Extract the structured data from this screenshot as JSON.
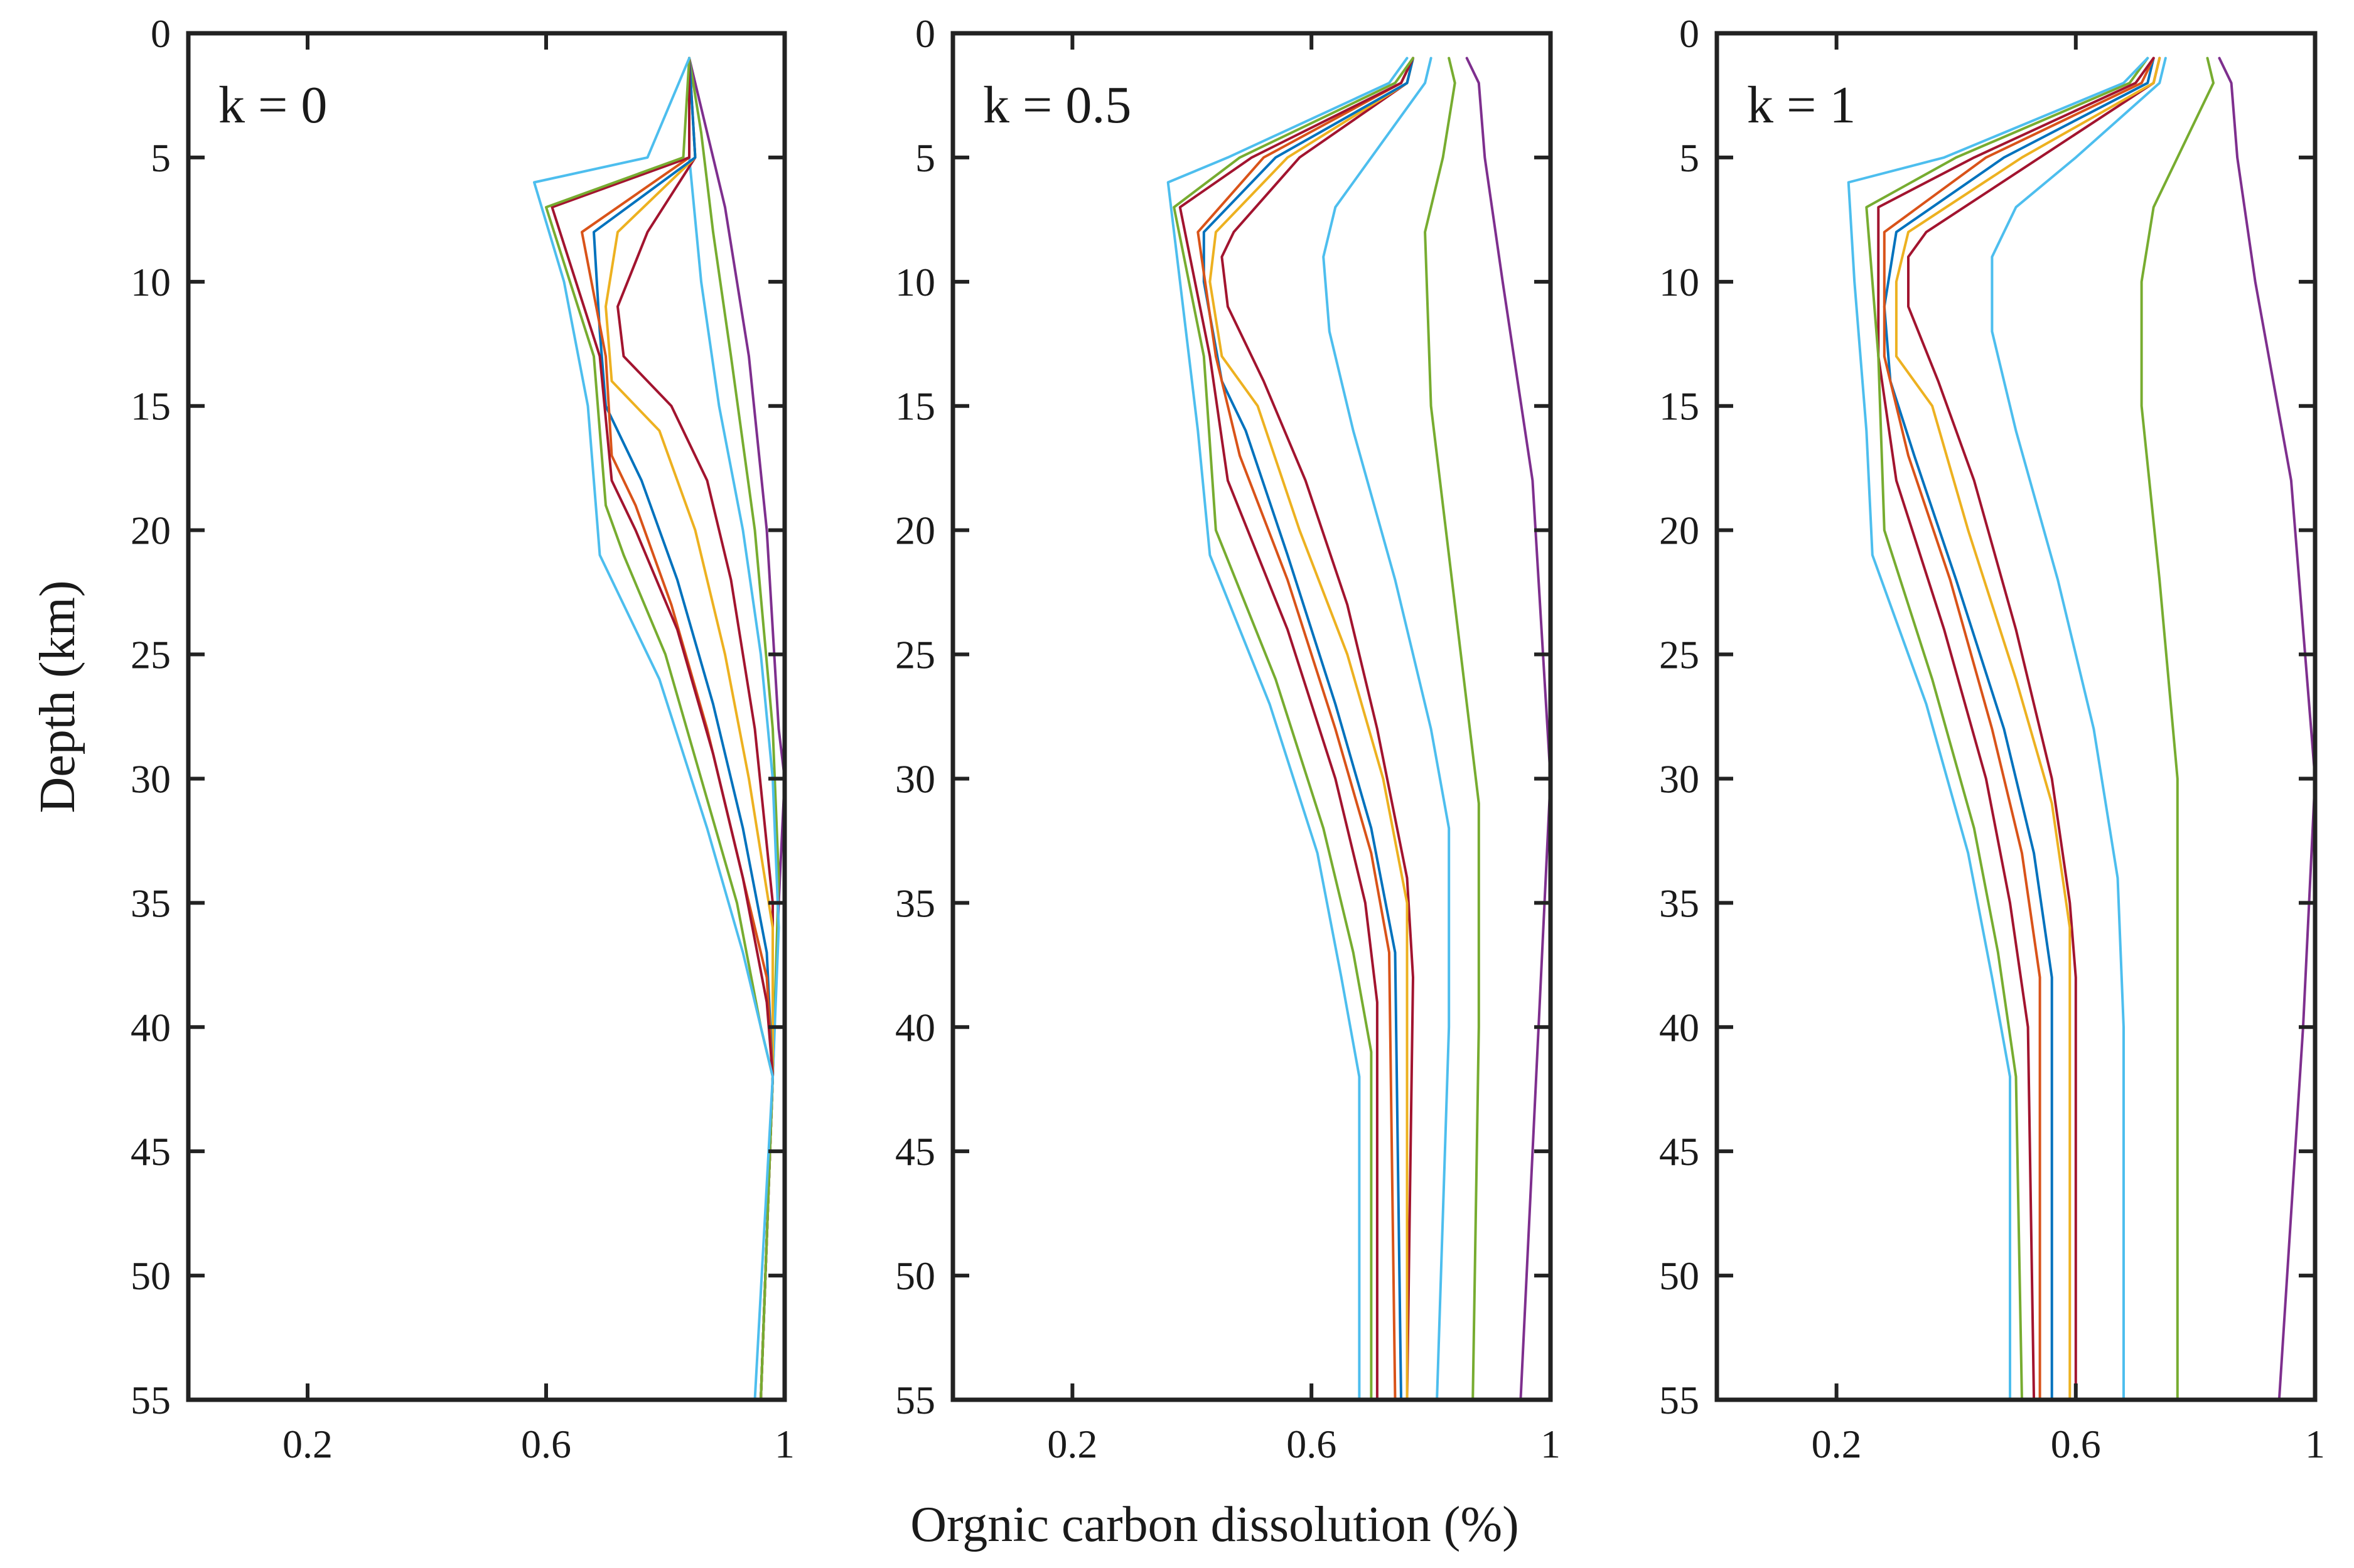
{
  "figure": {
    "xlabel": "Orgnic carbon dissolution (%)",
    "ylabel": "Depth (km)"
  },
  "chart_data": [
    {
      "type": "line",
      "panel_label": "k = 0",
      "xlim": [
        0,
        1
      ],
      "ylim": [
        0,
        55
      ],
      "y_reversed": true,
      "xticks": [
        0.2,
        0.6,
        1
      ],
      "xtick_labels": [
        "0.2",
        "0.6",
        "1"
      ],
      "yticks": [
        0,
        5,
        10,
        15,
        20,
        25,
        30,
        35,
        40,
        45,
        50,
        55
      ],
      "ytick_labels": [
        "0",
        "5",
        "10",
        "15",
        "20",
        "25",
        "30",
        "35",
        "40",
        "45",
        "50",
        "55"
      ],
      "grid": false,
      "series": [
        {
          "color": "#7E2F8E",
          "depth": [
            1,
            3,
            7,
            13,
            20,
            28,
            30,
            35,
            42,
            55
          ],
          "values": [
            0.84,
            0.86,
            0.9,
            0.94,
            0.97,
            0.99,
            1.0,
            0.99,
            0.98,
            0.96
          ]
        },
        {
          "color": "#77AC30",
          "depth": [
            1,
            4,
            8,
            13,
            20,
            28,
            34,
            42,
            55
          ],
          "values": [
            0.84,
            0.86,
            0.88,
            0.91,
            0.95,
            0.98,
            0.99,
            0.98,
            0.96
          ]
        },
        {
          "color": "#4DBEEE",
          "depth": [
            1,
            5,
            10,
            15,
            20,
            25,
            30,
            36,
            42,
            55
          ],
          "values": [
            0.84,
            0.84,
            0.86,
            0.89,
            0.93,
            0.96,
            0.98,
            0.99,
            0.98,
            0.96
          ]
        },
        {
          "color": "#A2142F",
          "depth": [
            1,
            5,
            8,
            11,
            13,
            15,
            18,
            22,
            28,
            35,
            42,
            55
          ],
          "values": [
            0.84,
            0.85,
            0.77,
            0.72,
            0.73,
            0.81,
            0.87,
            0.91,
            0.95,
            0.98,
            0.98,
            0.96
          ]
        },
        {
          "color": "#EDB120",
          "depth": [
            1,
            5,
            8,
            11,
            14,
            16,
            20,
            25,
            30,
            36,
            42,
            55
          ],
          "values": [
            0.84,
            0.85,
            0.72,
            0.7,
            0.71,
            0.79,
            0.85,
            0.9,
            0.94,
            0.98,
            0.98,
            0.96
          ]
        },
        {
          "color": "#0072BD",
          "depth": [
            1,
            5,
            8,
            12,
            15,
            18,
            22,
            27,
            32,
            37,
            42,
            55
          ],
          "values": [
            0.84,
            0.85,
            0.68,
            0.69,
            0.7,
            0.76,
            0.82,
            0.88,
            0.93,
            0.97,
            0.98,
            0.96
          ]
        },
        {
          "color": "#D95319",
          "depth": [
            1,
            5,
            8,
            13,
            17,
            19,
            23,
            28,
            33,
            38,
            42,
            55
          ],
          "values": [
            0.84,
            0.84,
            0.66,
            0.7,
            0.71,
            0.75,
            0.81,
            0.87,
            0.92,
            0.97,
            0.98,
            0.96
          ]
        },
        {
          "color": "#A2142F",
          "depth": [
            1,
            5,
            7,
            13,
            18,
            20,
            24,
            29,
            34,
            39,
            42,
            55
          ],
          "values": [
            0.84,
            0.84,
            0.61,
            0.69,
            0.71,
            0.75,
            0.82,
            0.88,
            0.93,
            0.97,
            0.98,
            0.96
          ]
        },
        {
          "color": "#77AC30",
          "depth": [
            1,
            5,
            7,
            13,
            19,
            21,
            25,
            30,
            35,
            40,
            42,
            55
          ],
          "values": [
            0.84,
            0.83,
            0.6,
            0.68,
            0.7,
            0.73,
            0.8,
            0.86,
            0.92,
            0.96,
            0.98,
            0.96
          ]
        },
        {
          "color": "#4DBEEE",
          "depth": [
            1,
            5,
            6,
            10,
            15,
            21,
            26,
            32,
            37,
            42,
            55
          ],
          "values": [
            0.84,
            0.77,
            0.58,
            0.63,
            0.67,
            0.69,
            0.79,
            0.87,
            0.93,
            0.98,
            0.95
          ]
        }
      ]
    },
    {
      "type": "line",
      "panel_label": "k = 0.5",
      "xlim": [
        0,
        1
      ],
      "ylim": [
        0,
        55
      ],
      "y_reversed": true,
      "xticks": [
        0.2,
        0.6,
        1
      ],
      "xtick_labels": [
        "0.2",
        "0.6",
        "1"
      ],
      "yticks": [
        0,
        5,
        10,
        15,
        20,
        25,
        30,
        35,
        40,
        45,
        50,
        55
      ],
      "ytick_labels": [
        "0",
        "5",
        "10",
        "15",
        "20",
        "25",
        "30",
        "35",
        "40",
        "45",
        "50",
        "55"
      ],
      "grid": false,
      "series": [
        {
          "color": "#7E2F8E",
          "depth": [
            1,
            2,
            5,
            10,
            18,
            30,
            40,
            55
          ],
          "values": [
            0.86,
            0.88,
            0.89,
            0.92,
            0.97,
            1.0,
            0.98,
            0.95
          ]
        },
        {
          "color": "#77AC30",
          "depth": [
            1,
            2,
            5,
            8,
            15,
            25,
            31,
            40,
            55
          ],
          "values": [
            0.83,
            0.84,
            0.82,
            0.79,
            0.8,
            0.85,
            0.88,
            0.88,
            0.87
          ]
        },
        {
          "color": "#4DBEEE",
          "depth": [
            1,
            2,
            5,
            7,
            9,
            12,
            16,
            22,
            28,
            32,
            40,
            55
          ],
          "values": [
            0.8,
            0.79,
            0.7,
            0.64,
            0.62,
            0.63,
            0.67,
            0.74,
            0.8,
            0.83,
            0.83,
            0.81
          ]
        },
        {
          "color": "#A2142F",
          "depth": [
            1,
            2,
            5,
            8,
            9,
            11,
            14,
            18,
            23,
            28,
            34,
            38,
            55
          ],
          "values": [
            0.77,
            0.76,
            0.58,
            0.47,
            0.45,
            0.46,
            0.52,
            0.59,
            0.66,
            0.71,
            0.76,
            0.77,
            0.76
          ]
        },
        {
          "color": "#EDB120",
          "depth": [
            1,
            2,
            5,
            8,
            10,
            13,
            15,
            20,
            25,
            30,
            35,
            55
          ],
          "values": [
            0.77,
            0.76,
            0.56,
            0.44,
            0.43,
            0.45,
            0.51,
            0.58,
            0.66,
            0.72,
            0.76,
            0.76
          ]
        },
        {
          "color": "#0072BD",
          "depth": [
            1,
            2,
            5,
            8,
            10,
            14,
            16,
            21,
            27,
            32,
            37,
            55
          ],
          "values": [
            0.77,
            0.76,
            0.54,
            0.42,
            0.42,
            0.45,
            0.49,
            0.56,
            0.64,
            0.7,
            0.74,
            0.75
          ]
        },
        {
          "color": "#D95319",
          "depth": [
            1,
            2,
            5,
            8,
            13,
            17,
            22,
            28,
            33,
            37,
            55
          ],
          "values": [
            0.77,
            0.75,
            0.52,
            0.41,
            0.44,
            0.48,
            0.56,
            0.64,
            0.7,
            0.73,
            0.74
          ]
        },
        {
          "color": "#A2142F",
          "depth": [
            1,
            2,
            5,
            7,
            13,
            18,
            24,
            30,
            35,
            39,
            55
          ],
          "values": [
            0.77,
            0.75,
            0.5,
            0.38,
            0.43,
            0.46,
            0.56,
            0.64,
            0.69,
            0.71,
            0.71
          ]
        },
        {
          "color": "#77AC30",
          "depth": [
            1,
            2,
            5,
            7,
            13,
            20,
            26,
            32,
            37,
            41,
            55
          ],
          "values": [
            0.77,
            0.74,
            0.48,
            0.37,
            0.42,
            0.44,
            0.54,
            0.62,
            0.67,
            0.7,
            0.7
          ]
        },
        {
          "color": "#4DBEEE",
          "depth": [
            1,
            2,
            5,
            6,
            10,
            16,
            21,
            27,
            33,
            38,
            42,
            55
          ],
          "values": [
            0.76,
            0.73,
            0.46,
            0.36,
            0.38,
            0.41,
            0.43,
            0.53,
            0.61,
            0.65,
            0.68,
            0.68
          ]
        }
      ]
    },
    {
      "type": "line",
      "panel_label": "k = 1",
      "xlim": [
        0,
        1
      ],
      "ylim": [
        0,
        55
      ],
      "y_reversed": true,
      "xticks": [
        0.2,
        0.6,
        1
      ],
      "xtick_labels": [
        "0.2",
        "0.6",
        "1"
      ],
      "yticks": [
        0,
        5,
        10,
        15,
        20,
        25,
        30,
        35,
        40,
        45,
        50,
        55
      ],
      "ytick_labels": [
        "0",
        "5",
        "10",
        "15",
        "20",
        "25",
        "30",
        "35",
        "40",
        "45",
        "50",
        "55"
      ],
      "grid": false,
      "series": [
        {
          "color": "#7E2F8E",
          "depth": [
            1,
            2,
            5,
            10,
            18,
            30,
            40,
            55
          ],
          "values": [
            0.84,
            0.86,
            0.87,
            0.9,
            0.96,
            1.0,
            0.98,
            0.94
          ]
        },
        {
          "color": "#77AC30",
          "depth": [
            1,
            2,
            4,
            7,
            10,
            15,
            22,
            30,
            35,
            55
          ],
          "values": [
            0.82,
            0.83,
            0.79,
            0.73,
            0.71,
            0.71,
            0.74,
            0.77,
            0.77,
            0.77
          ]
        },
        {
          "color": "#4DBEEE",
          "depth": [
            1,
            2,
            5,
            7,
            9,
            12,
            16,
            22,
            28,
            34,
            40,
            55
          ],
          "values": [
            0.75,
            0.74,
            0.6,
            0.5,
            0.46,
            0.46,
            0.5,
            0.57,
            0.63,
            0.67,
            0.68,
            0.68
          ]
        },
        {
          "color": "#A2142F",
          "depth": [
            1,
            2,
            5,
            8,
            9,
            11,
            14,
            18,
            24,
            30,
            35,
            38,
            55
          ],
          "values": [
            0.74,
            0.73,
            0.54,
            0.35,
            0.32,
            0.32,
            0.37,
            0.43,
            0.5,
            0.56,
            0.59,
            0.6,
            0.6
          ]
        },
        {
          "color": "#EDB120",
          "depth": [
            1,
            2,
            5,
            8,
            10,
            13,
            15,
            20,
            26,
            31,
            36,
            55
          ],
          "values": [
            0.74,
            0.73,
            0.51,
            0.32,
            0.3,
            0.3,
            0.36,
            0.42,
            0.5,
            0.56,
            0.59,
            0.59
          ]
        },
        {
          "color": "#0072BD",
          "depth": [
            1,
            2,
            5,
            8,
            11,
            14,
            17,
            22,
            28,
            33,
            38,
            55
          ],
          "values": [
            0.73,
            0.72,
            0.48,
            0.3,
            0.28,
            0.29,
            0.33,
            0.4,
            0.48,
            0.53,
            0.56,
            0.56
          ]
        },
        {
          "color": "#D95319",
          "depth": [
            1,
            2,
            5,
            8,
            13,
            17,
            22,
            28,
            33,
            38,
            55
          ],
          "values": [
            0.73,
            0.71,
            0.45,
            0.28,
            0.28,
            0.32,
            0.39,
            0.46,
            0.51,
            0.54,
            0.54
          ]
        },
        {
          "color": "#A2142F",
          "depth": [
            1,
            2,
            5,
            7,
            13,
            18,
            24,
            30,
            35,
            40,
            55
          ],
          "values": [
            0.73,
            0.7,
            0.43,
            0.27,
            0.27,
            0.3,
            0.38,
            0.45,
            0.49,
            0.52,
            0.53
          ]
        },
        {
          "color": "#77AC30",
          "depth": [
            1,
            2,
            5,
            7,
            13,
            20,
            26,
            32,
            37,
            42,
            55
          ],
          "values": [
            0.72,
            0.69,
            0.4,
            0.25,
            0.27,
            0.28,
            0.36,
            0.43,
            0.47,
            0.5,
            0.51
          ]
        },
        {
          "color": "#4DBEEE",
          "depth": [
            1,
            2,
            5,
            6,
            10,
            16,
            21,
            27,
            33,
            38,
            42,
            55
          ],
          "values": [
            0.72,
            0.68,
            0.38,
            0.22,
            0.23,
            0.25,
            0.26,
            0.35,
            0.42,
            0.46,
            0.49,
            0.49
          ]
        }
      ]
    }
  ]
}
